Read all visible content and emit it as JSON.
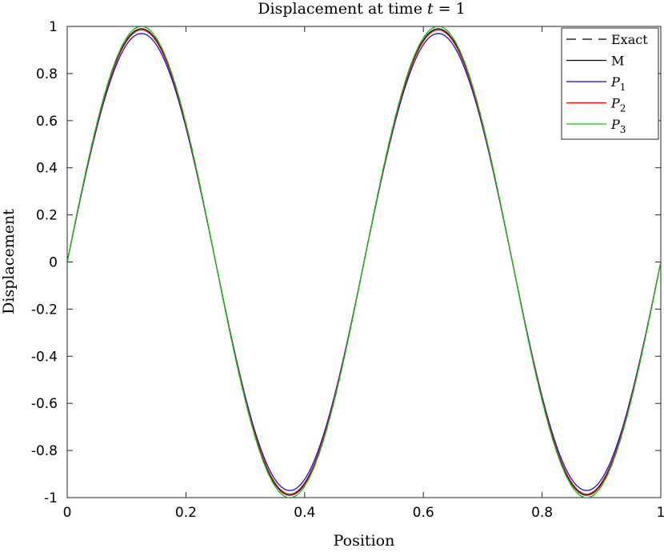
{
  "chart_data": {
    "type": "line",
    "title": "Displacement at time t = 1",
    "title_parts": {
      "text": "Displacement at time ",
      "var": "t",
      "rest": " = 1"
    },
    "xlabel": "Position",
    "ylabel": "Displacement",
    "xlim": [
      0,
      1
    ],
    "ylim": [
      -1,
      1
    ],
    "xticks": [
      0,
      0.2,
      0.4,
      0.6,
      0.8,
      1
    ],
    "xtick_labels": [
      "0",
      "0.2",
      "0.4",
      "0.6",
      "0.8",
      "1"
    ],
    "yticks": [
      -1,
      -0.8,
      -0.6,
      -0.4,
      -0.2,
      0,
      0.2,
      0.4,
      0.6,
      0.8,
      1
    ],
    "ytick_labels": [
      "-1",
      "-0.8",
      "-0.6",
      "-0.4",
      "-0.2",
      "0",
      "0.2",
      "0.4",
      "0.6",
      "0.8",
      "1"
    ],
    "grid": false,
    "legend_position": "top-right",
    "x": [
      0,
      0.0625,
      0.125,
      0.1875,
      0.25,
      0.3125,
      0.375,
      0.4375,
      0.5,
      0.5625,
      0.625,
      0.6875,
      0.75,
      0.8125,
      0.875,
      0.9375,
      1
    ],
    "series": [
      {
        "name": "Exact",
        "sub": "",
        "color": "#000000",
        "dash": "dashed",
        "amplitude": 1.0,
        "values": [
          0,
          0.707,
          1.0,
          0.707,
          0,
          -0.707,
          -1.0,
          -0.707,
          0,
          0.707,
          1.0,
          0.707,
          0,
          -0.707,
          -1.0,
          -0.707,
          0
        ]
      },
      {
        "name": "M",
        "sub": "",
        "color": "#000000",
        "dash": "solid",
        "amplitude": 0.99,
        "values": [
          0,
          0.7,
          0.99,
          0.7,
          0,
          -0.7,
          -0.99,
          -0.7,
          0,
          0.7,
          0.99,
          0.7,
          0,
          -0.7,
          -0.99,
          -0.7,
          0
        ]
      },
      {
        "name": "P",
        "sub": "1",
        "color": "#0000ff",
        "dash": "solid",
        "amplitude": 0.97,
        "values": [
          0,
          0.686,
          0.97,
          0.686,
          0,
          -0.686,
          -0.97,
          -0.686,
          0,
          0.686,
          0.97,
          0.686,
          0,
          -0.686,
          -0.97,
          -0.686,
          0
        ]
      },
      {
        "name": "P",
        "sub": "2",
        "color": "#ff0000",
        "dash": "solid",
        "amplitude": 0.985,
        "values": [
          0,
          0.696,
          0.985,
          0.696,
          0,
          -0.696,
          -0.985,
          -0.696,
          0,
          0.696,
          0.985,
          0.696,
          0,
          -0.696,
          -0.985,
          -0.696,
          0
        ]
      },
      {
        "name": "P",
        "sub": "3",
        "color": "#00d000",
        "dash": "solid",
        "amplitude": 1.0,
        "values": [
          0,
          0.707,
          1.0,
          0.707,
          0,
          -0.707,
          -1.0,
          -0.707,
          0,
          0.707,
          1.0,
          0.707,
          0,
          -0.707,
          -1.0,
          -0.707,
          0
        ]
      }
    ]
  }
}
